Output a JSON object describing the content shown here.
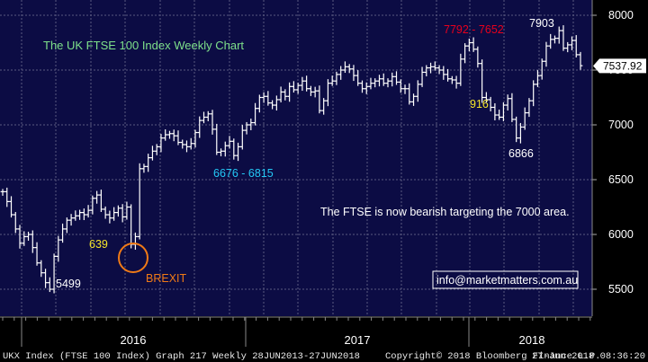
{
  "chart_data": {
    "type": "line",
    "style": "ohlc-bars",
    "title": "The UK FTSE 100 Index Weekly Chart",
    "ylim": [
      5250,
      8100
    ],
    "yticks": [
      5500,
      6000,
      6500,
      7000,
      7500,
      8000
    ],
    "x_tick_labels": [
      "2016",
      "2017",
      "2018"
    ],
    "last_price": 7537.92,
    "series": [
      {
        "values": [
          6390,
          6300,
          6180,
          6050,
          5920,
          5980,
          6000,
          5880,
          5740,
          5650,
          5560,
          5500,
          5800,
          5950,
          6050,
          6130,
          6150,
          6170,
          6200,
          6180,
          6220,
          6330,
          6360,
          6230,
          6180,
          6150,
          6200,
          6240,
          6160,
          6250,
          5910,
          5980,
          6600,
          6620,
          6700,
          6760,
          6800,
          6880,
          6910,
          6920,
          6900,
          6840,
          6820,
          6800,
          6830,
          6930,
          7040,
          7070,
          7100,
          6960,
          6750,
          6760,
          6810,
          6850,
          6720,
          6800,
          6950,
          7000,
          7020,
          7150,
          7250,
          7260,
          7200,
          7180,
          7230,
          7300,
          7260,
          7350,
          7320,
          7360,
          7400,
          7330,
          7300,
          7310,
          7130,
          7220,
          7380,
          7400,
          7460,
          7500,
          7530,
          7510,
          7450,
          7380,
          7330,
          7350,
          7380,
          7400,
          7420,
          7380,
          7400,
          7440,
          7390,
          7330,
          7330,
          7210,
          7260,
          7370,
          7480,
          7520,
          7530,
          7520,
          7500,
          7460,
          7420,
          7410,
          7380,
          7600,
          7720,
          7750,
          7690,
          7560,
          7250,
          7230,
          7160,
          7090,
          7070,
          7180,
          7240,
          7050,
          6880,
          6980,
          7110,
          7220,
          7370,
          7450,
          7580,
          7720,
          7780,
          7790,
          7860,
          7700,
          7730,
          7770,
          7640,
          7540
        ]
      }
    ],
    "annotations": [
      {
        "text": "7792 - 7652",
        "color": "#e8001c"
      },
      {
        "text": "7903",
        "color": "#ffffff"
      },
      {
        "text": "916",
        "color": "#f5e52a"
      },
      {
        "text": "6866",
        "color": "#ffffff"
      },
      {
        "text": "6676 - 6815",
        "color": "#24c8f5"
      },
      {
        "text": "639",
        "color": "#f5e52a"
      },
      {
        "text": "5499",
        "color": "#ffffff"
      },
      {
        "text": "BREXIT",
        "color": "#f07a16"
      },
      {
        "text": "The FTSE is now bearish targeting the 7000 area.",
        "color": "#ffffff"
      }
    ],
    "contact": "info@marketmatters.com.au",
    "footer": {
      "left": "UKX Index (FTSE 100 Index) Graph 217  Weekly 28JUN2013-27JUN2018",
      "center": "Copyright© 2018 Bloomberg Finance L.P.",
      "right": "27-Jun-2018 08:36:20"
    },
    "grid": true,
    "colors": {
      "background": "#000000",
      "plot_background": "#0c0c44",
      "grid": "#5a5a80",
      "bars": "#ffffff",
      "title": "#7ee08a",
      "last_price_box": "#ffffff",
      "brexit_circle": "#f07a16",
      "contact_border": "#ffffff",
      "contact_text": "#ffffff"
    }
  }
}
